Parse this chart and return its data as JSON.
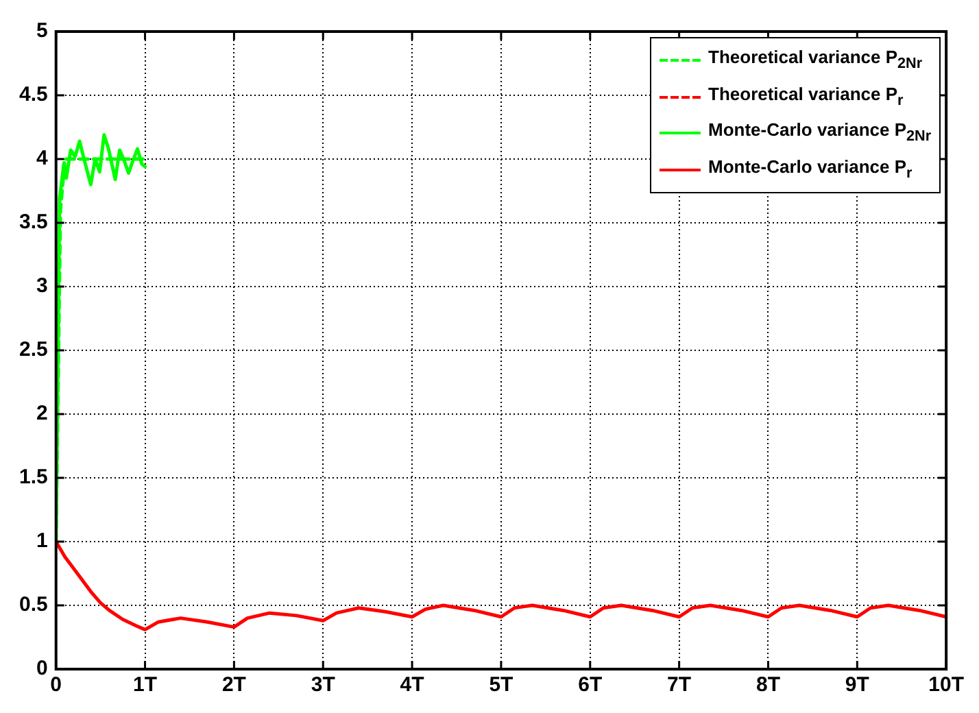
{
  "chart_data": {
    "type": "line",
    "xlim": [
      0,
      10
    ],
    "ylim": [
      0,
      5
    ],
    "xticks": [
      0,
      {
        "value": 1,
        "label": "1T"
      },
      {
        "value": 2,
        "label": "2T"
      },
      {
        "value": 3,
        "label": "3T"
      },
      {
        "value": 4,
        "label": "4T"
      },
      {
        "value": 5,
        "label": "5T"
      },
      {
        "value": 6,
        "label": "6T"
      },
      {
        "value": 7,
        "label": "7T"
      },
      {
        "value": 8,
        "label": "8T"
      },
      {
        "value": 9,
        "label": "9T"
      },
      {
        "value": 10,
        "label": "10T"
      }
    ],
    "yticks": [
      0,
      0.5,
      1,
      1.5,
      2,
      2.5,
      3,
      3.5,
      4,
      4.5,
      5
    ],
    "grid": true,
    "legend": "top right",
    "marker": "none",
    "series": [
      {
        "name": "Theoretical variance P$_{2Nr}$",
        "color": "#00ff00",
        "line_style": "dashed",
        "x": [
          0,
          0.05,
          0.1,
          1
        ],
        "values": [
          1,
          3.6,
          4,
          4
        ]
      },
      {
        "name": "Theoretical variance P$_{r}$",
        "color": "#ff0000",
        "line_style": "dashed",
        "values": [
          null
        ]
      },
      {
        "name": "Monte-Carlo variance P$_{2Nr}$",
        "color": "#00ff00",
        "line_style": "solid",
        "x": [
          0,
          0.04,
          0.09,
          0.115,
          0.165,
          0.215,
          0.265,
          0.315,
          0.39,
          0.44,
          0.49,
          0.54,
          0.59,
          0.665,
          0.715,
          0.765,
          0.815,
          0.865,
          0.915,
          0.965,
          1
        ],
        "values": [
          1,
          3.69,
          3.97,
          3.85,
          4.07,
          4.02,
          4.14,
          4,
          3.8,
          4,
          3.9,
          4.19,
          4.08,
          3.84,
          4.07,
          3.99,
          3.89,
          3.99,
          4.08,
          3.96,
          3.94
        ]
      },
      {
        "name": "Monte-Carlo variance P$_{r}$",
        "color": "#ff0000",
        "line_style": "solid",
        "x": [
          0,
          0.1,
          0.25,
          0.4,
          0.5,
          0.6,
          0.75,
          0.9,
          1,
          1.15,
          1.4,
          1.7,
          2,
          2.15,
          2.4,
          2.7,
          3,
          3.15,
          3.4,
          3.7,
          4,
          4.15,
          4.35,
          4.7,
          5,
          5.15,
          5.35,
          5.7,
          6,
          6.15,
          6.35,
          6.7,
          7,
          7.15,
          7.35,
          7.7,
          8,
          8.15,
          8.35,
          8.7,
          9,
          9.15,
          9.35,
          9.7,
          10
        ],
        "values": [
          1,
          0.88,
          0.74,
          0.6,
          0.52,
          0.46,
          0.39,
          0.34,
          0.31,
          0.37,
          0.4,
          0.37,
          0.33,
          0.4,
          0.44,
          0.42,
          0.38,
          0.44,
          0.48,
          0.45,
          0.41,
          0.47,
          0.5,
          0.46,
          0.41,
          0.48,
          0.5,
          0.46,
          0.41,
          0.48,
          0.5,
          0.46,
          0.41,
          0.48,
          0.5,
          0.46,
          0.41,
          0.48,
          0.5,
          0.46,
          0.41,
          0.48,
          0.5,
          0.46,
          0.41
        ]
      }
    ]
  }
}
